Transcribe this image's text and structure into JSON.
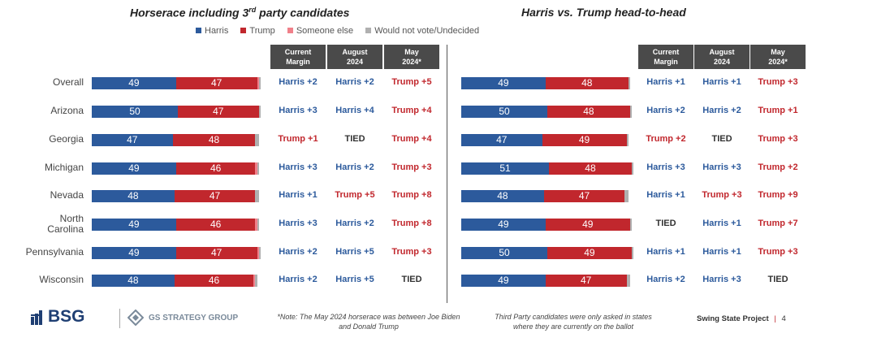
{
  "colors": {
    "harris": "#2c5a9c",
    "trump": "#c1272d",
    "other": "#f0808a",
    "undecided": "#b0b0b0",
    "header_bg": "#4a4a4a"
  },
  "legend": [
    {
      "label": "Harris",
      "color": "#2c5a9c"
    },
    {
      "label": "Trump",
      "color": "#c1272d"
    },
    {
      "label": "Someone else",
      "color": "#f0808a"
    },
    {
      "label": "Would not vote/Undecided",
      "color": "#b0b0b0"
    }
  ],
  "col_headers": [
    {
      "line1": "Current",
      "line2": "Margin"
    },
    {
      "line1": "August",
      "line2": "2024"
    },
    {
      "line1": "May",
      "line2": "2024*"
    }
  ],
  "states": [
    "Overall",
    "Arizona",
    "Georgia",
    "Michigan",
    "Nevada",
    "North Carolina",
    "Pennsylvania",
    "Wisconsin"
  ],
  "chart_data": [
    {
      "type": "bar",
      "title": "Horserace including 3rd party candidates",
      "stacked": true,
      "orientation": "horizontal",
      "categories": [
        "Overall",
        "Arizona",
        "Georgia",
        "Michigan",
        "Nevada",
        "North Carolina",
        "Pennsylvania",
        "Wisconsin"
      ],
      "series": [
        {
          "name": "Harris",
          "values": [
            49,
            50,
            47,
            49,
            48,
            49,
            49,
            48
          ]
        },
        {
          "name": "Trump",
          "values": [
            47,
            47,
            48,
            46,
            47,
            46,
            47,
            46
          ]
        },
        {
          "name": "Someone else",
          "values": [
            1,
            0,
            0,
            1,
            0,
            1,
            1,
            1
          ]
        },
        {
          "name": "Would not vote/Undecided",
          "values": [
            1,
            1,
            2,
            1,
            2,
            1,
            1,
            1
          ]
        }
      ],
      "margins": {
        "current": [
          "Harris +2",
          "Harris +3",
          "Trump +1",
          "Harris +3",
          "Harris +1",
          "Harris +3",
          "Harris +2",
          "Harris +2"
        ],
        "august_2024": [
          "Harris +2",
          "Harris +4",
          "TIED",
          "Harris +2",
          "Trump +5",
          "Harris +2",
          "Harris +5",
          "Harris +5"
        ],
        "may_2024": [
          "Trump +5",
          "Trump +4",
          "Trump +4",
          "Trump +3",
          "Trump +8",
          "Trump +8",
          "Trump +3",
          "TIED"
        ]
      }
    },
    {
      "type": "bar",
      "title": "Harris vs. Trump head-to-head",
      "stacked": true,
      "orientation": "horizontal",
      "categories": [
        "Overall",
        "Arizona",
        "Georgia",
        "Michigan",
        "Nevada",
        "North Carolina",
        "Pennsylvania",
        "Wisconsin"
      ],
      "series": [
        {
          "name": "Harris",
          "values": [
            49,
            50,
            47,
            51,
            48,
            49,
            50,
            49
          ]
        },
        {
          "name": "Trump",
          "values": [
            48,
            48,
            49,
            48,
            47,
            49,
            49,
            47
          ]
        },
        {
          "name": "Would not vote/Undecided",
          "values": [
            1,
            1,
            1,
            1,
            2,
            1,
            1,
            2
          ]
        }
      ],
      "margins": {
        "current": [
          "Harris +1",
          "Harris +2",
          "Trump +2",
          "Harris +3",
          "Harris +1",
          "TIED",
          "Harris +1",
          "Harris +2"
        ],
        "august_2024": [
          "Harris +1",
          "Harris +2",
          "TIED",
          "Harris +3",
          "Trump +3",
          "Harris +1",
          "Harris +1",
          "Harris +3"
        ],
        "may_2024": [
          "Trump +3",
          "Trump +1",
          "Trump +3",
          "Trump +2",
          "Trump +9",
          "Trump +7",
          "Trump +3",
          "TIED"
        ]
      }
    }
  ],
  "footer": {
    "logo_bsg": "BSG",
    "logo_gs": "GS STRATEGY GROUP",
    "note_left": "*Note: The May 2024 horserace was between Joe Biden and Donald Trump",
    "note_right": "Third Party candidates were only asked in states where they are currently on the ballot",
    "project": "Swing State Project",
    "page": "4"
  }
}
